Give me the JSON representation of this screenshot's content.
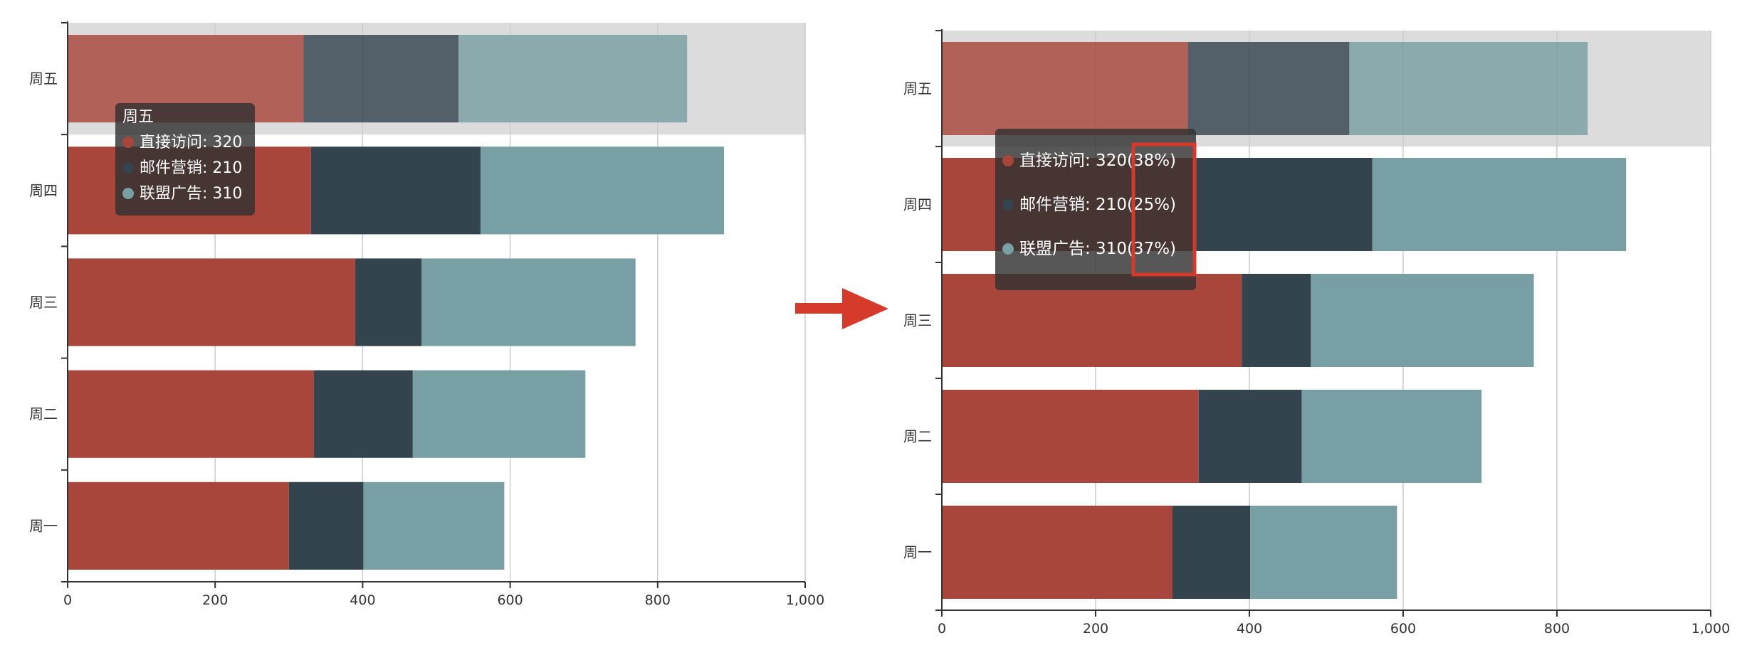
{
  "chart_data": [
    {
      "type": "bar",
      "orientation": "horizontal",
      "stacked": true,
      "categories": [
        "周一",
        "周二",
        "周三",
        "周四",
        "周五"
      ],
      "series": [
        {
          "name": "直接访问",
          "values": [
            300,
            334,
            390,
            330,
            320
          ]
        },
        {
          "name": "邮件营销",
          "values": [
            101,
            134,
            90,
            230,
            210
          ]
        },
        {
          "name": "联盟广告",
          "values": [
            191,
            234,
            290,
            330,
            310
          ]
        }
      ],
      "xlim": [
        0,
        1000
      ],
      "x_ticks": [
        "0",
        "200",
        "400",
        "600",
        "800",
        "1,000"
      ],
      "grid": true,
      "highlighted_category": "周五",
      "tooltip": {
        "title": "周五",
        "lines": [
          "直接访问: 320",
          "邮件营销: 210",
          "联盟广告: 310"
        ]
      }
    },
    {
      "type": "bar",
      "orientation": "horizontal",
      "stacked": true,
      "categories": [
        "周一",
        "周二",
        "周三",
        "周四",
        "周五"
      ],
      "series": [
        {
          "name": "直接访问",
          "values": [
            300,
            334,
            390,
            330,
            320
          ]
        },
        {
          "name": "邮件营销",
          "values": [
            101,
            134,
            90,
            230,
            210
          ]
        },
        {
          "name": "联盟广告",
          "values": [
            191,
            234,
            290,
            330,
            310
          ]
        }
      ],
      "xlim": [
        0,
        1000
      ],
      "x_ticks": [
        "0",
        "200",
        "400",
        "600",
        "800",
        "1,000"
      ],
      "grid": true,
      "highlighted_category": "周五",
      "tooltip": {
        "title": "",
        "lines": [
          "直接访问: 320(38%)",
          "邮件营销: 210(25%)",
          "联盟广告: 310(37%)"
        ]
      }
    }
  ],
  "colors": {
    "series": [
      "#a8463c",
      "#34444f",
      "#779fa4"
    ],
    "highlight_band": "#dcdcdc",
    "grid": "#cccccc",
    "axis": "#333333",
    "tooltip_bg": "rgba(50,50,50,0.82)",
    "annotation": "#d63a2a"
  }
}
